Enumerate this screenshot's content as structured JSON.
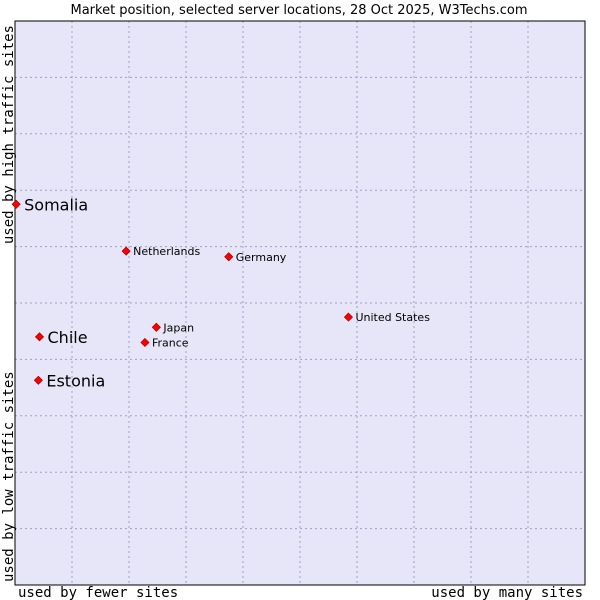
{
  "chart_data": {
    "type": "scatter",
    "title": "Market position, selected server locations, 28 Oct 2025, W3Techs.com",
    "xlabel_left": "used by fewer sites",
    "xlabel_right": "used by many sites",
    "ylabel_bottom": "used by low traffic sites",
    "ylabel_top": "used by high traffic sites",
    "xlim": [
      0,
      100
    ],
    "ylim": [
      0,
      100
    ],
    "grid": true,
    "colors": {
      "plot_bg": "#e6e6f8",
      "grid": "#a0a0c8",
      "point": "#ff0000",
      "point_edge": "#b00000"
    },
    "points": [
      {
        "label": "Somalia",
        "x": 0.2,
        "y": 67.5,
        "size": "large"
      },
      {
        "label": "Netherlands",
        "x": 19.5,
        "y": 59.2,
        "size": "small"
      },
      {
        "label": "Germany",
        "x": 37.5,
        "y": 58.2,
        "size": "small"
      },
      {
        "label": "United States",
        "x": 58.5,
        "y": 47.5,
        "size": "small"
      },
      {
        "label": "Japan",
        "x": 24.8,
        "y": 45.7,
        "size": "small"
      },
      {
        "label": "France",
        "x": 22.8,
        "y": 43.0,
        "size": "small"
      },
      {
        "label": "Chile",
        "x": 4.3,
        "y": 44.0,
        "size": "large"
      },
      {
        "label": "Estonia",
        "x": 4.1,
        "y": 36.3,
        "size": "large"
      }
    ]
  }
}
